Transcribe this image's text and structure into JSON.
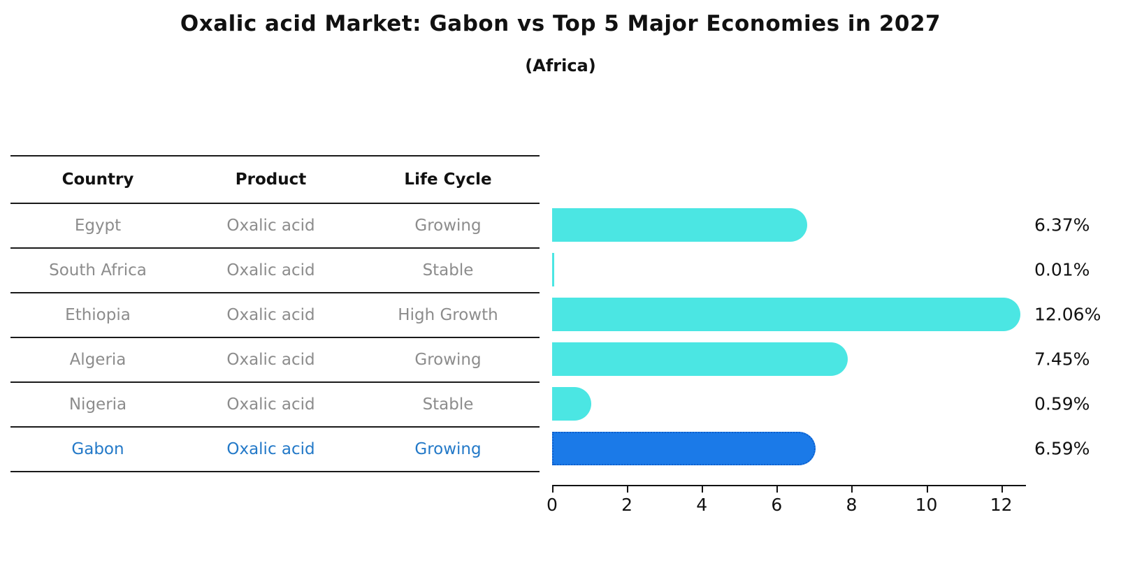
{
  "title": "Oxalic acid Market: Gabon vs Top 5 Major Economies in 2027",
  "subtitle": "(Africa)",
  "colors": {
    "bar": "#4BE6E3",
    "highlight_bar": "#1B7AE8",
    "highlight_bar_border": "#0E5FCC",
    "table_text": "#8C8C8C",
    "highlight_text": "#2379C8",
    "axis_and_labels": "#111111"
  },
  "table": {
    "headers": [
      "Country",
      "Product",
      "Life Cycle"
    ],
    "rows": [
      {
        "country": "Egypt",
        "product": "Oxalic acid",
        "life_cycle": "Growing",
        "highlight": false
      },
      {
        "country": "South Africa",
        "product": "Oxalic acid",
        "life_cycle": "Stable",
        "highlight": false
      },
      {
        "country": "Ethiopia",
        "product": "Oxalic acid",
        "life_cycle": "High Growth",
        "highlight": false
      },
      {
        "country": "Algeria",
        "product": "Oxalic acid",
        "life_cycle": "Growing",
        "highlight": false
      },
      {
        "country": "Nigeria",
        "product": "Oxalic acid",
        "life_cycle": "Stable",
        "highlight": false
      },
      {
        "country": "Gabon",
        "product": "Oxalic acid",
        "life_cycle": "Growing",
        "highlight": true
      }
    ]
  },
  "chart_data": {
    "type": "bar",
    "orientation": "horizontal",
    "title": "Oxalic acid Market: Gabon vs Top 5 Major Economies in 2027 (Africa)",
    "xlabel": "",
    "ylabel": "",
    "categories": [
      "Egypt",
      "South Africa",
      "Ethiopia",
      "Algeria",
      "Nigeria",
      "Gabon"
    ],
    "values": [
      6.37,
      0.01,
      12.06,
      7.45,
      0.59,
      6.59
    ],
    "value_labels": [
      "6.37%",
      "0.01%",
      "12.06%",
      "7.45%",
      "0.59%",
      "6.59%"
    ],
    "highlight_index": 5,
    "xticks": [
      0,
      2,
      4,
      6,
      8,
      10,
      12
    ],
    "xlim": [
      0,
      12.66
    ],
    "grid": false,
    "legend": false
  }
}
